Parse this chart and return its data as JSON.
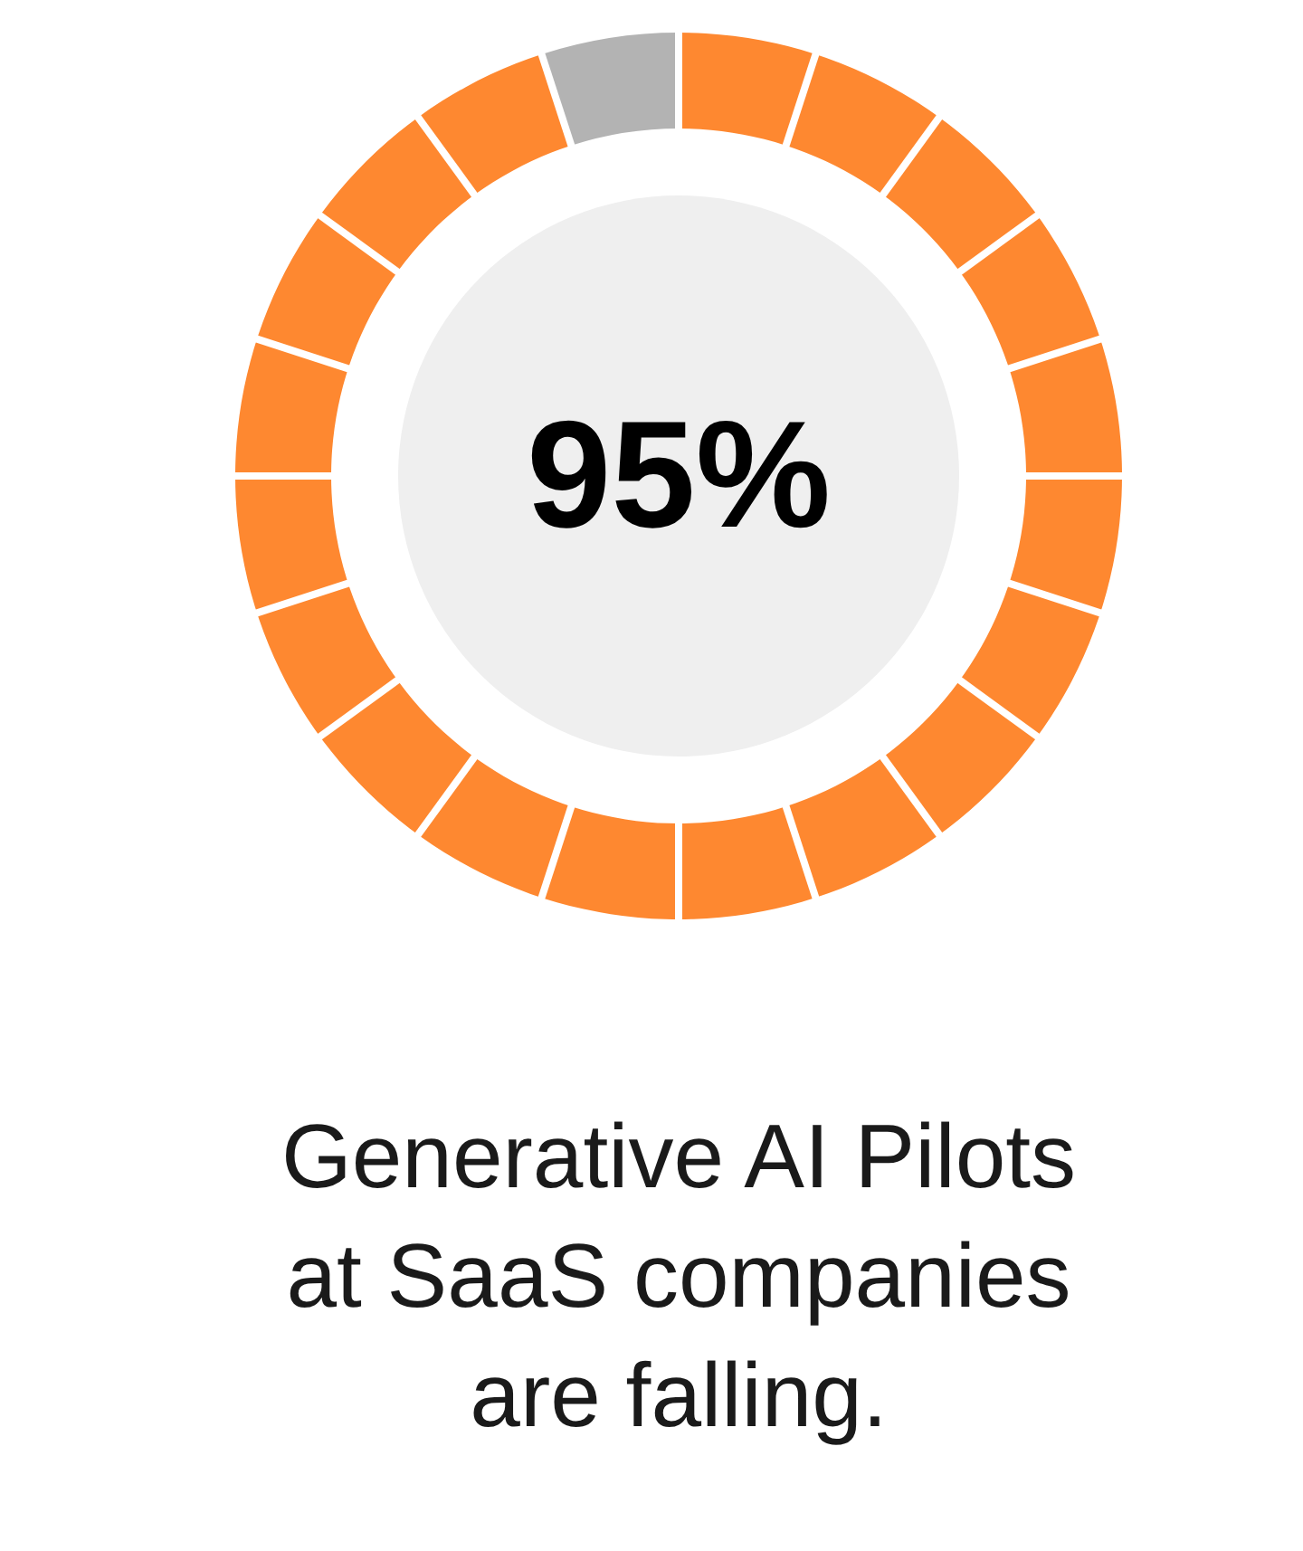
{
  "chart_data": {
    "type": "donut",
    "title": "Generative AI Pilots at SaaS companies are falling.",
    "categories": [
      null,
      null
    ],
    "values": [
      95,
      5
    ],
    "colors": [
      "#fe8830",
      "#b3b3b3"
    ],
    "value_labels": [
      "95%",
      null
    ]
  }
}
